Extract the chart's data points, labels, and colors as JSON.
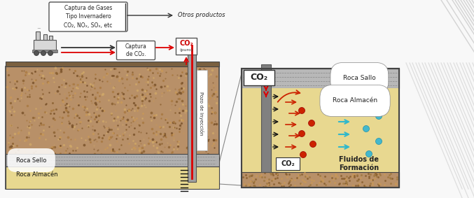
{
  "bg_color": "#f2f2f2",
  "left_ground_color": "#b8956a",
  "left_ground_texture": "#a07848",
  "seal_color": "#b8b8b8",
  "storage_color": "#e8dba0",
  "surface_color": "#8a7055",
  "well_color": "#909090",
  "red_color": "#cc0000",
  "cyan_color": "#30b8cc",
  "box_bg": "#ffffff",
  "label_texts": {
    "capture_box": "Captura de Gases\nTipo Invernadero\nCO₂, NOₓ, SOₓ, etc",
    "otros_productos": "Otros productos",
    "captura_co2_box": "Captura\nde CO₂.",
    "co2_puro_line1": "CO₂",
    "co2_puro_line2": "(puro)",
    "pozo": "Pozo de Inyección",
    "roca_sello_left": "Roca Sello",
    "roca_almacen_left": "Roca Almacén",
    "co2_top_right": "CO₂",
    "roca_sello_right": "Roca Sallo",
    "roca_almacen_right": "Roca Almacén",
    "co2_bottom_right": "CO₂",
    "fluidos": "Fluidos de\nFormación"
  }
}
